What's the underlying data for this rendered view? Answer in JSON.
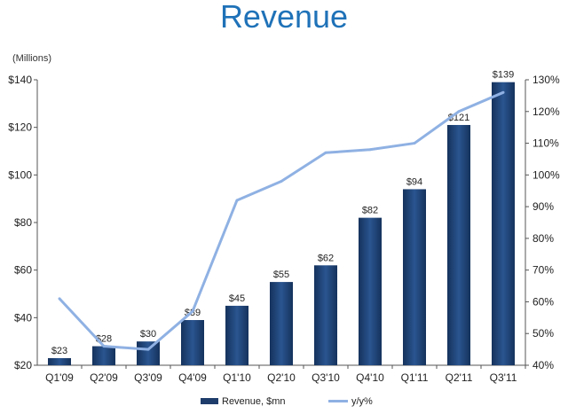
{
  "chart_data": {
    "type": "bar",
    "title": "Revenue",
    "units_note": "(Millions)",
    "categories": [
      "Q1'09",
      "Q2'09",
      "Q3'09",
      "Q4'09",
      "Q1'10",
      "Q2'10",
      "Q3'10",
      "Q4'10",
      "Q1'11",
      "Q2'11",
      "Q3'11"
    ],
    "series": [
      {
        "name": "Revenue, $mn",
        "kind": "bar",
        "axis": "left",
        "values": [
          23,
          28,
          30,
          39,
          45,
          55,
          62,
          82,
          94,
          121,
          139
        ],
        "labels": [
          "$23",
          "$28",
          "$30",
          "$39",
          "$45",
          "$55",
          "$62",
          "$82",
          "$94",
          "$121",
          "$139"
        ],
        "color": "#1f3d6b"
      },
      {
        "name": "y/y%",
        "kind": "line",
        "axis": "right",
        "values": [
          61,
          46,
          45,
          57,
          92,
          98,
          107,
          108,
          110,
          120,
          126
        ],
        "color": "#8fb1e3"
      }
    ],
    "y_left": {
      "min": 20,
      "max": 140,
      "ticks": [
        20,
        40,
        60,
        80,
        100,
        120,
        140
      ],
      "tick_labels": [
        "$20",
        "$40",
        "$60",
        "$80",
        "$100",
        "$120",
        "$140"
      ]
    },
    "y_right": {
      "min": 40,
      "max": 130,
      "ticks": [
        40,
        50,
        60,
        70,
        80,
        90,
        100,
        110,
        120,
        130
      ],
      "tick_labels": [
        "40%",
        "50%",
        "60%",
        "70%",
        "80%",
        "90%",
        "100%",
        "110%",
        "120%",
        "130%"
      ]
    },
    "grid": false,
    "legend_position": "bottom"
  }
}
